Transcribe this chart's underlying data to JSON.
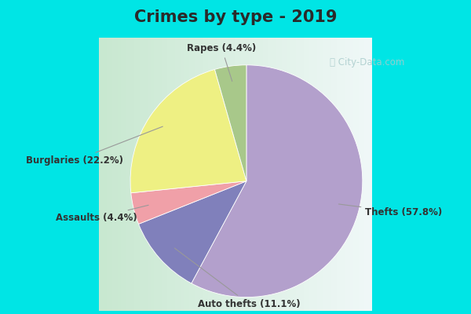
{
  "title": "Crimes by type - 2019",
  "slices": [
    {
      "label": "Thefts",
      "pct": 57.8,
      "color": "#b3a0cc",
      "display": "Thefts (57.8%)"
    },
    {
      "label": "Auto thefts",
      "pct": 11.1,
      "color": "#8080bb",
      "display": "Auto thefts (11.1%)"
    },
    {
      "label": "Assaults",
      "pct": 4.4,
      "color": "#f0a0a8",
      "display": "Assaults (4.4%)"
    },
    {
      "label": "Burglaries",
      "pct": 22.2,
      "color": "#eef083",
      "display": "Burglaries (22.2%)"
    },
    {
      "label": "Rapes",
      "pct": 4.4,
      "color": "#a8c88a",
      "display": "Rapes (4.4%)"
    }
  ],
  "startangle": 90,
  "cyan_color": "#00e5e5",
  "bg_color": "#d8f0e0",
  "title_color": "#2a2a2a",
  "title_fontsize": 15,
  "label_fontsize": 8.5,
  "watermark": "ⓘ City-Data.com",
  "watermark_color": "#aacccc"
}
